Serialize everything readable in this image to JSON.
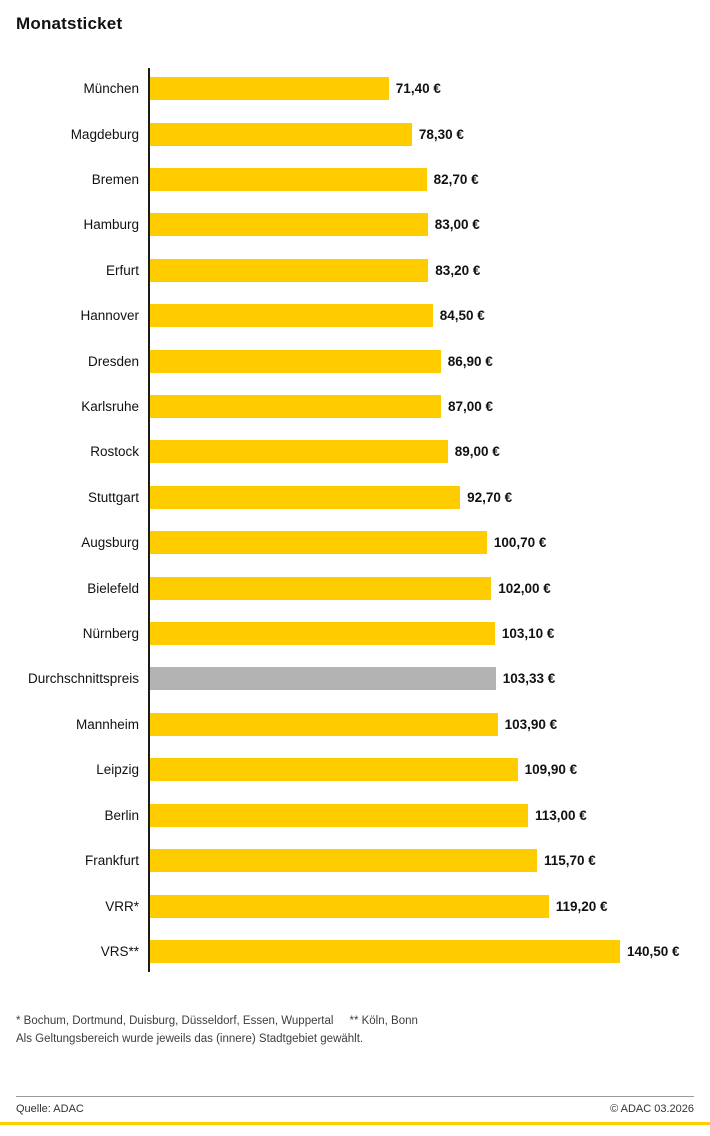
{
  "title": "Monatsticket",
  "colors": {
    "bar": "#FFCC00",
    "average_bar": "#B3B3B3",
    "axis": "#1A1A1A",
    "accent_line": "#FFCC00"
  },
  "chart_data": {
    "type": "bar",
    "orientation": "horizontal",
    "title": "Monatsticket",
    "unit": "€",
    "xlim": [
      0,
      145
    ],
    "grid": false,
    "legend": "none",
    "categories": [
      "München",
      "Magdeburg",
      "Bremen",
      "Hamburg",
      "Erfurt",
      "Hannover",
      "Dresden",
      "Karlsruhe",
      "Rostock",
      "Stuttgart",
      "Augsburg",
      "Bielefeld",
      "Nürnberg",
      "Durchschnittspreis",
      "Mannheim",
      "Leipzig",
      "Berlin",
      "Frankfurt",
      "VRR*",
      "VRS**"
    ],
    "values": [
      71.4,
      78.3,
      82.7,
      83.0,
      83.2,
      84.5,
      86.9,
      87.0,
      89.0,
      92.7,
      100.7,
      102.0,
      103.1,
      103.33,
      103.9,
      109.9,
      113.0,
      115.7,
      119.2,
      140.5
    ],
    "value_labels": [
      "71,40 €",
      "78,30 €",
      "82,70 €",
      "83,00 €",
      "83,20 €",
      "84,50 €",
      "86,90 €",
      "87,00 €",
      "89,00 €",
      "92,70 €",
      "100,70 €",
      "102,00 €",
      "103,10 €",
      "103,33 €",
      "103,90 €",
      "109,90 €",
      "113,00 €",
      "115,70 €",
      "119,20 €",
      "140,50 €"
    ],
    "average_index": 13,
    "average_label": "Durchschnittspreis"
  },
  "footnotes": {
    "line1_star": "* Bochum, Dortmund, Duisburg, Düsseldorf, Essen, Wuppertal",
    "line1_doublestar": "** Köln, Bonn",
    "line2": "Als Geltungsbereich wurde jeweils das (innere) Stadtgebiet gewählt."
  },
  "footer": {
    "source": "Quelle: ADAC",
    "copyright": "© ADAC 03.2026"
  }
}
